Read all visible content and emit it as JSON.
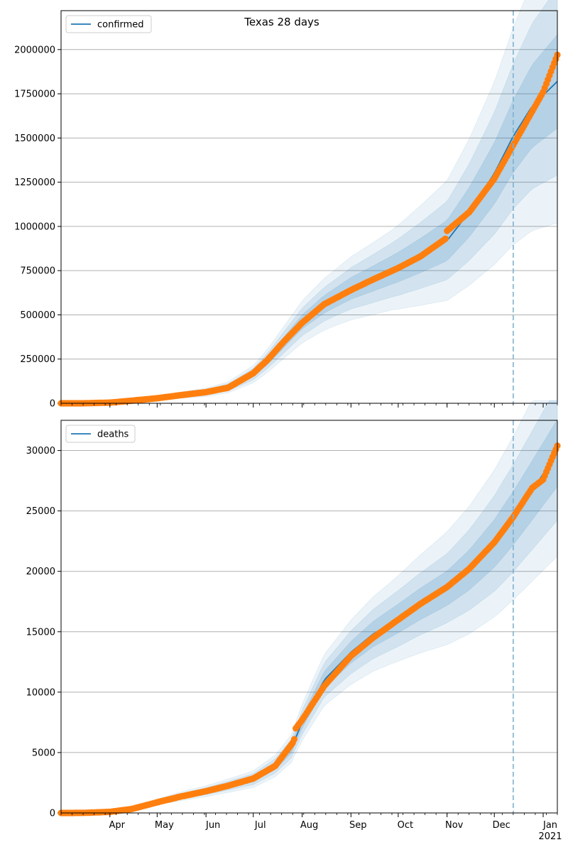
{
  "title": "Texas 28 days",
  "colors": {
    "model": "#1f77b4",
    "observed": "#ff7f0e",
    "band": "#1f77b4",
    "vline": "#7fb0d0",
    "grid": "#b0b0b0"
  },
  "x_axis": {
    "range": [
      "2020-03-01",
      "2021-01-10"
    ],
    "month_labels": [
      {
        "date": "2020-04-01",
        "label": "Apr"
      },
      {
        "date": "2020-05-01",
        "label": "May"
      },
      {
        "date": "2020-06-01",
        "label": "Jun"
      },
      {
        "date": "2020-07-01",
        "label": "Jul"
      },
      {
        "date": "2020-08-01",
        "label": "Aug"
      },
      {
        "date": "2020-09-01",
        "label": "Sep"
      },
      {
        "date": "2020-10-01",
        "label": "Oct"
      },
      {
        "date": "2020-11-01",
        "label": "Nov"
      },
      {
        "date": "2020-12-01",
        "label": "Dec"
      },
      {
        "date": "2021-01-01",
        "label": "Jan"
      }
    ],
    "year_label": "2021",
    "forecast_start": "2020-12-13"
  },
  "chart_data": [
    {
      "type": "line",
      "legend": "confirmed",
      "legend_loc": "upper-left",
      "grid": "y",
      "ylim": [
        0,
        2220000
      ],
      "yticks": [
        {
          "v": 0,
          "label": "0"
        },
        {
          "v": 250000,
          "label": "250000"
        },
        {
          "v": 500000,
          "label": "500000"
        },
        {
          "v": 750000,
          "label": "750000"
        },
        {
          "v": 1000000,
          "label": "1000000"
        },
        {
          "v": 1250000,
          "label": "1250000"
        },
        {
          "v": 1500000,
          "label": "1500000"
        },
        {
          "v": 1750000,
          "label": "1750000"
        },
        {
          "v": 2000000,
          "label": "2000000"
        }
      ],
      "model": [
        [
          "2020-03-01",
          0
        ],
        [
          "2020-03-15",
          500
        ],
        [
          "2020-04-01",
          4000
        ],
        [
          "2020-04-15",
          15000
        ],
        [
          "2020-05-01",
          28000
        ],
        [
          "2020-05-15",
          45000
        ],
        [
          "2020-06-01",
          62000
        ],
        [
          "2020-06-15",
          90000
        ],
        [
          "2020-07-01",
          165000
        ],
        [
          "2020-07-10",
          240000
        ],
        [
          "2020-07-20",
          340000
        ],
        [
          "2020-08-01",
          460000
        ],
        [
          "2020-08-15",
          560000
        ],
        [
          "2020-09-01",
          650000
        ],
        [
          "2020-09-15",
          705000
        ],
        [
          "2020-10-01",
          770000
        ],
        [
          "2020-10-15",
          835000
        ],
        [
          "2020-11-01",
          920000
        ],
        [
          "2020-11-15",
          1080000
        ],
        [
          "2020-12-01",
          1300000
        ],
        [
          "2020-12-13",
          1510000
        ],
        [
          "2020-12-25",
          1680000
        ],
        [
          "2021-01-10",
          1820000
        ]
      ],
      "bands": [
        {
          "spread": [
            [
              0,
              0
            ],
            [
              0.06,
              4000
            ],
            [
              0.1,
              12000
            ],
            [
              0.14,
              18000
            ],
            [
              0.18,
              28000
            ],
            [
              0.2,
              40000
            ],
            [
              0.22,
              60000
            ],
            [
              0.26,
              100000
            ],
            [
              0.3,
              140000
            ],
            [
              0.33,
              200000
            ]
          ],
          "opacity": 0.09
        },
        {
          "spread": [
            [
              0,
              0
            ],
            [
              0.04,
              2500
            ],
            [
              0.06,
              8000
            ],
            [
              0.09,
              12000
            ],
            [
              0.12,
              18000
            ],
            [
              0.13,
              26000
            ],
            [
              0.15,
              40000
            ],
            [
              0.17,
              65000
            ],
            [
              0.2,
              95000
            ],
            [
              0.22,
              130000
            ]
          ],
          "opacity": 0.12
        },
        {
          "spread": [
            [
              0,
              0
            ],
            [
              0.02,
              1200
            ],
            [
              0.03,
              4000
            ],
            [
              0.045,
              6000
            ],
            [
              0.06,
              9000
            ],
            [
              0.07,
              13000
            ],
            [
              0.08,
              20000
            ],
            [
              0.09,
              32000
            ],
            [
              0.1,
              48000
            ],
            [
              0.11,
              65000
            ]
          ],
          "opacity": 0.16
        }
      ],
      "observed_key": [
        [
          "2020-03-01",
          10
        ],
        [
          "2020-03-15",
          60
        ],
        [
          "2020-04-01",
          3800
        ],
        [
          "2020-04-15",
          15000
        ],
        [
          "2020-05-01",
          28500
        ],
        [
          "2020-05-15",
          45000
        ],
        [
          "2020-06-01",
          63000
        ],
        [
          "2020-06-15",
          88000
        ],
        [
          "2020-07-01",
          170000
        ],
        [
          "2020-07-10",
          245000
        ],
        [
          "2020-07-20",
          345000
        ],
        [
          "2020-08-01",
          455000
        ],
        [
          "2020-08-15",
          560000
        ],
        [
          "2020-09-01",
          640000
        ],
        [
          "2020-09-15",
          700000
        ],
        [
          "2020-10-01",
          765000
        ],
        [
          "2020-10-15",
          830000
        ],
        [
          "2020-10-31",
          930000
        ],
        [
          "2020-11-01",
          975000
        ],
        [
          "2020-11-15",
          1080000
        ],
        [
          "2020-12-01",
          1270000
        ],
        [
          "2020-12-13",
          1460000
        ],
        [
          "2020-12-25",
          1650000
        ],
        [
          "2021-01-01",
          1760000
        ],
        [
          "2021-01-10",
          1970000
        ]
      ]
    },
    {
      "type": "line",
      "legend": "deaths",
      "legend_loc": "upper-left",
      "grid": "y",
      "ylim": [
        0,
        32500
      ],
      "yticks": [
        {
          "v": 0,
          "label": "0"
        },
        {
          "v": 5000,
          "label": "5000"
        },
        {
          "v": 10000,
          "label": "10000"
        },
        {
          "v": 15000,
          "label": "15000"
        },
        {
          "v": 20000,
          "label": "20000"
        },
        {
          "v": 25000,
          "label": "25000"
        },
        {
          "v": 30000,
          "label": "30000"
        }
      ],
      "model": [
        [
          "2020-03-01",
          0
        ],
        [
          "2020-03-15",
          5
        ],
        [
          "2020-04-01",
          80
        ],
        [
          "2020-04-15",
          350
        ],
        [
          "2020-05-01",
          900
        ],
        [
          "2020-05-15",
          1350
        ],
        [
          "2020-06-01",
          1800
        ],
        [
          "2020-06-15",
          2250
        ],
        [
          "2020-07-01",
          2800
        ],
        [
          "2020-07-15",
          3900
        ],
        [
          "2020-07-25",
          5300
        ],
        [
          "2020-08-01",
          7500
        ],
        [
          "2020-08-15",
          11000
        ],
        [
          "2020-09-01",
          13300
        ],
        [
          "2020-09-15",
          14800
        ],
        [
          "2020-10-01",
          16100
        ],
        [
          "2020-10-15",
          17300
        ],
        [
          "2020-11-01",
          18600
        ],
        [
          "2020-11-15",
          20100
        ],
        [
          "2020-12-01",
          22300
        ],
        [
          "2020-12-13",
          24400
        ],
        [
          "2020-12-25",
          26700
        ],
        [
          "2021-01-10",
          29800
        ]
      ],
      "bands": [
        {
          "spread": [
            [
              0,
              0
            ],
            [
              0.08,
              60
            ],
            [
              0.1,
              200
            ],
            [
              0.11,
              300
            ],
            [
              0.12,
              450
            ],
            [
              0.13,
              800
            ],
            [
              0.14,
              1200
            ],
            [
              0.16,
              1700
            ],
            [
              0.18,
              2200
            ],
            [
              0.2,
              2600
            ]
          ],
          "opacity": 0.09
        },
        {
          "spread": [
            [
              0,
              0
            ],
            [
              0.05,
              40
            ],
            [
              0.06,
              130
            ],
            [
              0.07,
              200
            ],
            [
              0.08,
              300
            ],
            [
              0.09,
              500
            ],
            [
              0.095,
              750
            ],
            [
              0.1,
              1000
            ],
            [
              0.12,
              1400
            ],
            [
              0.13,
              1700
            ]
          ],
          "opacity": 0.12
        },
        {
          "spread": [
            [
              0,
              0
            ],
            [
              0.03,
              20
            ],
            [
              0.03,
              70
            ],
            [
              0.035,
              100
            ],
            [
              0.04,
              150
            ],
            [
              0.045,
              250
            ],
            [
              0.05,
              380
            ],
            [
              0.05,
              500
            ],
            [
              0.06,
              700
            ],
            [
              0.065,
              850
            ]
          ],
          "opacity": 0.16
        }
      ],
      "observed_key": [
        [
          "2020-03-01",
          0
        ],
        [
          "2020-03-15",
          5
        ],
        [
          "2020-04-01",
          90
        ],
        [
          "2020-04-15",
          330
        ],
        [
          "2020-05-01",
          880
        ],
        [
          "2020-05-15",
          1330
        ],
        [
          "2020-06-01",
          1800
        ],
        [
          "2020-06-15",
          2250
        ],
        [
          "2020-07-01",
          2850
        ],
        [
          "2020-07-15",
          3900
        ],
        [
          "2020-07-26",
          5800
        ],
        [
          "2020-07-27",
          6100
        ],
        [
          "2020-07-28",
          7000
        ],
        [
          "2020-08-01",
          7700
        ],
        [
          "2020-08-15",
          10500
        ],
        [
          "2020-09-01",
          13000
        ],
        [
          "2020-09-15",
          14500
        ],
        [
          "2020-10-01",
          16000
        ],
        [
          "2020-10-15",
          17300
        ],
        [
          "2020-11-01",
          18700
        ],
        [
          "2020-11-15",
          20200
        ],
        [
          "2020-12-01",
          22400
        ],
        [
          "2020-12-13",
          24500
        ],
        [
          "2020-12-25",
          26900
        ],
        [
          "2021-01-01",
          27600
        ],
        [
          "2021-01-10",
          30400
        ]
      ]
    }
  ]
}
